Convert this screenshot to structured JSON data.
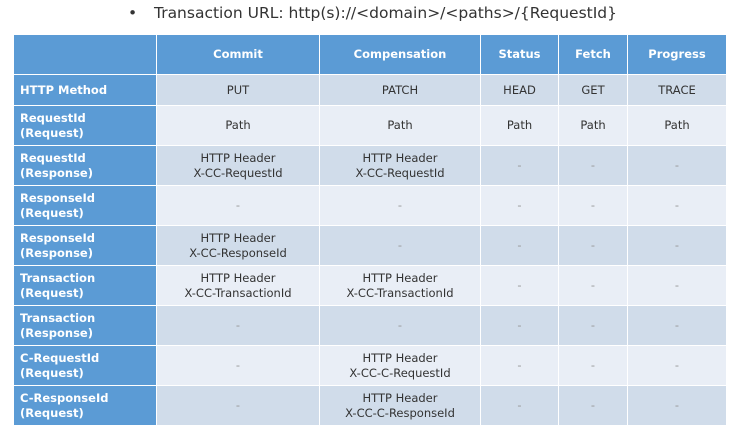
{
  "title": "Transaction URL: http(s)://<domain>/<paths>/{RequestId}",
  "bullet": "•",
  "columns": [
    "",
    "Commit",
    "Compensation",
    "Status",
    "Fetch",
    "Progress"
  ],
  "rows": [
    {
      "label": [
        "HTTP Method"
      ],
      "cells": [
        [
          "PUT"
        ],
        [
          "PATCH"
        ],
        [
          "HEAD"
        ],
        [
          "GET"
        ],
        [
          "TRACE"
        ]
      ]
    },
    {
      "label": [
        "RequestId",
        "(Request)"
      ],
      "cells": [
        [
          "Path"
        ],
        [
          "Path"
        ],
        [
          "Path"
        ],
        [
          "Path"
        ],
        [
          "Path"
        ]
      ]
    },
    {
      "label": [
        "RequestId",
        "(Response)"
      ],
      "cells": [
        [
          "HTTP Header",
          "X-CC-RequestId"
        ],
        [
          "HTTP Header",
          "X-CC-RequestId"
        ],
        [
          "-"
        ],
        [
          "-"
        ],
        [
          "-"
        ]
      ]
    },
    {
      "label": [
        "ResponseId",
        "(Request)"
      ],
      "cells": [
        [
          "-"
        ],
        [
          "-"
        ],
        [
          "-"
        ],
        [
          "-"
        ],
        [
          "-"
        ]
      ]
    },
    {
      "label": [
        "ResponseId",
        "(Response)"
      ],
      "cells": [
        [
          "HTTP Header",
          "X-CC-ResponseId"
        ],
        [
          "-"
        ],
        [
          "-"
        ],
        [
          "-"
        ],
        [
          "-"
        ]
      ]
    },
    {
      "label": [
        "Transaction",
        "(Request)"
      ],
      "cells": [
        [
          "HTTP Header",
          "X-CC-TransactionId"
        ],
        [
          "HTTP Header",
          "X-CC-TransactionId"
        ],
        [
          "-"
        ],
        [
          "-"
        ],
        [
          "-"
        ]
      ]
    },
    {
      "label": [
        "Transaction",
        "(Response)"
      ],
      "cells": [
        [
          "-"
        ],
        [
          "-"
        ],
        [
          "-"
        ],
        [
          "-"
        ],
        [
          "-"
        ]
      ]
    },
    {
      "label": [
        "C-RequestId",
        "(Request)"
      ],
      "cells": [
        [
          "-"
        ],
        [
          "HTTP Header",
          "X-CC-C-RequestId"
        ],
        [
          "-"
        ],
        [
          "-"
        ],
        [
          "-"
        ]
      ]
    },
    {
      "label": [
        "C-ResponseId",
        "(Request)"
      ],
      "cells": [
        [
          "-"
        ],
        [
          "HTTP Header",
          "X-CC-C-ResponseId"
        ],
        [
          "-"
        ],
        [
          "-"
        ],
        [
          "-"
        ]
      ]
    }
  ],
  "colors": {
    "header": "#5b9bd5",
    "band_dark": "#d0dcea",
    "band_light": "#e9eef6"
  }
}
